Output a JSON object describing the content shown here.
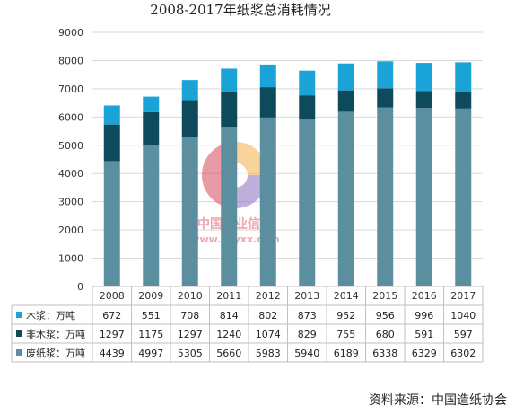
{
  "chart_data": {
    "type": "bar",
    "stacked": true,
    "title": "2008-2017年纸浆总消耗情况",
    "categories": [
      "2008",
      "2009",
      "2010",
      "2011",
      "2012",
      "2013",
      "2014",
      "2015",
      "2016",
      "2017"
    ],
    "series": [
      {
        "name": "废纸浆：万吨",
        "color": "#5b8fa0",
        "values": [
          4439,
          4997,
          5305,
          5660,
          5983,
          5940,
          6189,
          6338,
          6329,
          6302
        ]
      },
      {
        "name": "非木浆：万吨",
        "color": "#0e4a5c",
        "values": [
          1297,
          1175,
          1297,
          1240,
          1074,
          829,
          755,
          680,
          591,
          597
        ]
      },
      {
        "name": "木浆：万吨",
        "color": "#1aa3d6",
        "values": [
          672,
          551,
          708,
          814,
          802,
          873,
          952,
          956,
          996,
          1040
        ]
      }
    ],
    "table_order": [
      2,
      1,
      0
    ],
    "ylim": [
      0,
      9000
    ],
    "yticks": [
      0,
      1000,
      2000,
      3000,
      4000,
      5000,
      6000,
      7000,
      8000,
      9000
    ],
    "grid": true,
    "legend": "table"
  },
  "watermark": {
    "name": "中国产业信息",
    "url": "www.chyxx.com"
  },
  "source": "资料来源：中国造纸协会"
}
